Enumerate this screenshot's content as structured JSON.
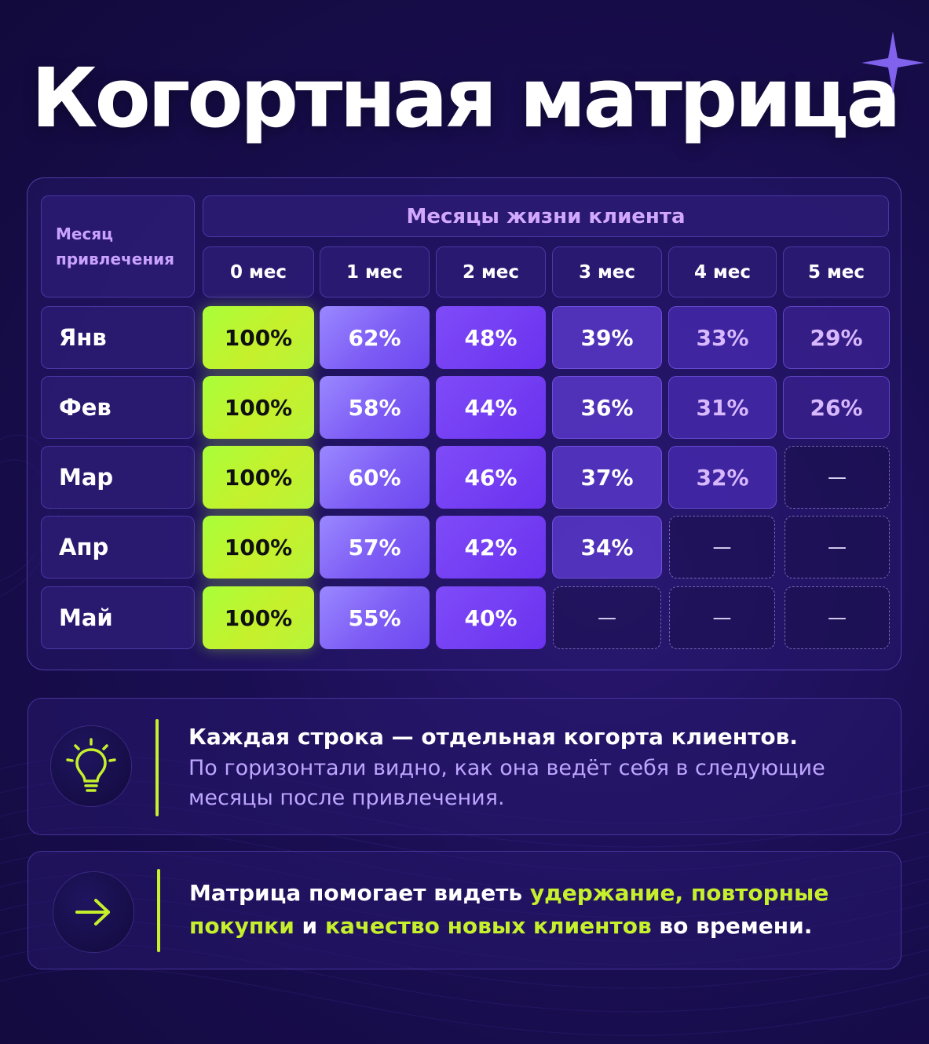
{
  "title": "Когортная матрица",
  "colors": {
    "accent_lime": "#c6f02c",
    "accent_purple": "#7d5cf5",
    "background": "#1a0e52"
  },
  "matrix": {
    "corner_header": "Месяц\nпривлечения",
    "span_header": "Месяцы жизни клиента",
    "columns": [
      "0 мес",
      "1 мес",
      "2 мес",
      "3 мес",
      "4 мес",
      "5 мес"
    ],
    "rows": [
      {
        "label": "Янв",
        "values": [
          "100%",
          "62%",
          "48%",
          "39%",
          "33%",
          "29%"
        ]
      },
      {
        "label": "Фев",
        "values": [
          "100%",
          "58%",
          "44%",
          "36%",
          "31%",
          "26%"
        ]
      },
      {
        "label": "Мар",
        "values": [
          "100%",
          "60%",
          "46%",
          "37%",
          "32%",
          "—"
        ]
      },
      {
        "label": "Апр",
        "values": [
          "100%",
          "57%",
          "42%",
          "34%",
          "—",
          "—"
        ]
      },
      {
        "label": "Май",
        "values": [
          "100%",
          "55%",
          "40%",
          "—",
          "—",
          "—"
        ]
      }
    ]
  },
  "card1": {
    "icon": "lightbulb-icon",
    "heading": "Каждая строка — отдельная когорта клиентов.",
    "body": "По горизонтали видно, как она ведёт себя в следующие месяцы после привлечения."
  },
  "card2": {
    "icon": "arrow-right-icon",
    "parts": [
      {
        "text": "Матрица помогает видеть ",
        "highlight": false
      },
      {
        "text": "удержание, повторные покупки",
        "highlight": true
      },
      {
        "text": " и ",
        "highlight": false
      },
      {
        "text": "качество новых клиентов",
        "highlight": true
      },
      {
        "text": " во времени.",
        "highlight": false
      }
    ]
  }
}
